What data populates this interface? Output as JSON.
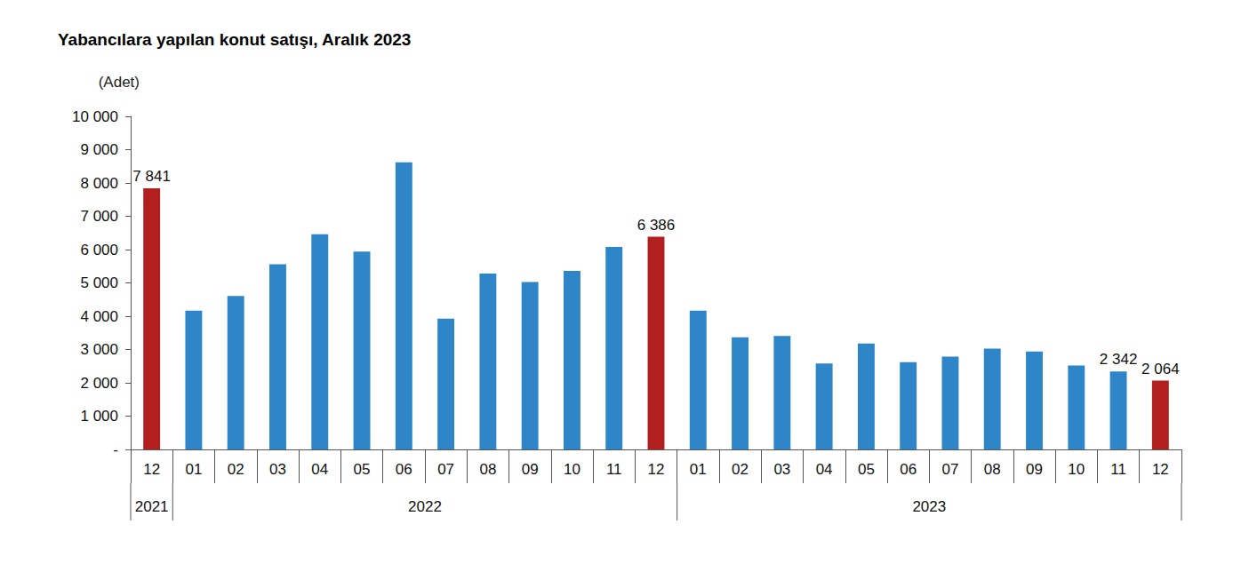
{
  "chart_data": {
    "type": "bar",
    "title": "Yabancılara yapılan konut satışı, Aralık 2023",
    "y_label": "(Adet)",
    "categories": [
      "12",
      "01",
      "02",
      "03",
      "04",
      "05",
      "06",
      "07",
      "08",
      "09",
      "10",
      "11",
      "12",
      "01",
      "02",
      "03",
      "04",
      "05",
      "06",
      "07",
      "08",
      "09",
      "10",
      "11",
      "12"
    ],
    "year_groups": [
      {
        "label": "2021",
        "count": 1
      },
      {
        "label": "2022",
        "count": 12
      },
      {
        "label": "2023",
        "count": 12
      }
    ],
    "values": [
      7841,
      4170,
      4610,
      5560,
      6460,
      5940,
      8620,
      3930,
      5280,
      5030,
      5360,
      6080,
      6386,
      4170,
      3370,
      3410,
      2580,
      3180,
      2620,
      2790,
      3030,
      2940,
      2520,
      2342,
      2064
    ],
    "value_labels": [
      "7 841",
      null,
      null,
      null,
      null,
      null,
      null,
      null,
      null,
      null,
      null,
      null,
      "6 386",
      null,
      null,
      null,
      null,
      null,
      null,
      null,
      null,
      null,
      null,
      "2 342",
      "2 064"
    ],
    "data_labels": true,
    "colors": [
      "#b21f1f",
      "#2e86c8",
      "#2e86c8",
      "#2e86c8",
      "#2e86c8",
      "#2e86c8",
      "#2e86c8",
      "#2e86c8",
      "#2e86c8",
      "#2e86c8",
      "#2e86c8",
      "#2e86c8",
      "#b21f1f",
      "#2e86c8",
      "#2e86c8",
      "#2e86c8",
      "#2e86c8",
      "#2e86c8",
      "#2e86c8",
      "#2e86c8",
      "#2e86c8",
      "#2e86c8",
      "#2e86c8",
      "#2e86c8",
      "#b21f1f"
    ],
    "ylim": [
      0,
      10000
    ],
    "yticks": [
      {
        "value": 0,
        "label": "-"
      },
      {
        "value": 1000,
        "label": "1 000"
      },
      {
        "value": 2000,
        "label": "2 000"
      },
      {
        "value": 3000,
        "label": "3 000"
      },
      {
        "value": 4000,
        "label": "4 000"
      },
      {
        "value": 5000,
        "label": "5 000"
      },
      {
        "value": 6000,
        "label": "6 000"
      },
      {
        "value": 7000,
        "label": "7 000"
      },
      {
        "value": 8000,
        "label": "8 000"
      },
      {
        "value": 9000,
        "label": "9 000"
      },
      {
        "value": 10000,
        "label": "10 000"
      }
    ],
    "grid": false
  }
}
